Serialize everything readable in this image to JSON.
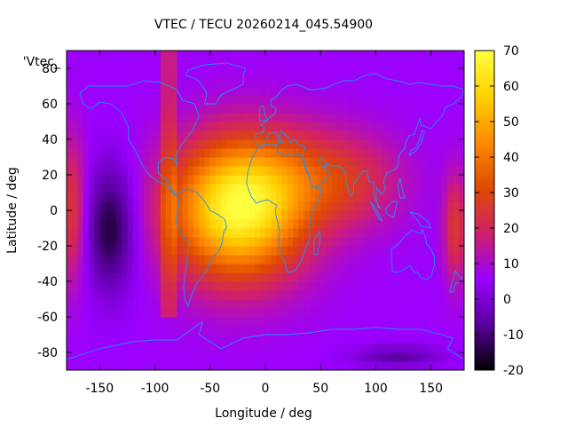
{
  "chart_data": {
    "type": "heatmap",
    "title": "VTEC / TECU 20260214_045.54900",
    "xlabel": "Longitude / deg",
    "ylabel": "Latitude / deg",
    "series_key": "'Vtec_",
    "xlim": [
      -180,
      180
    ],
    "ylim": [
      -90,
      90
    ],
    "xticks": [
      "-150",
      "-100",
      "-50",
      "0",
      "50",
      "100",
      "150"
    ],
    "yticks": [
      "80",
      "60",
      "40",
      "20",
      "0",
      "-20",
      "-40",
      "-60",
      "-80"
    ],
    "colorbar": {
      "range": [
        -20,
        70
      ],
      "ticks": [
        "70",
        "60",
        "50",
        "40",
        "30",
        "20",
        "10",
        "0",
        "-10",
        "-20"
      ],
      "palette": [
        "#000000",
        "#5a00a0",
        "#9a00ff",
        "#d0206a",
        "#e04a00",
        "#ff8a00",
        "#ffd000",
        "#ffff40"
      ]
    },
    "field_features": {
      "peak": {
        "lon": -25,
        "lat": 0,
        "value": 66
      },
      "secondary_crest": {
        "lon": 30,
        "lat": 20,
        "value": 40
      },
      "western_hotspot": {
        "lon": -175,
        "lat": 0,
        "value": 26
      },
      "east_edge_band": {
        "lon": 172,
        "lat": -10,
        "value": 26
      },
      "trough": {
        "lon": -140,
        "lat": -10,
        "value": -16
      }
    },
    "coastline_color": "#1e90ff"
  }
}
